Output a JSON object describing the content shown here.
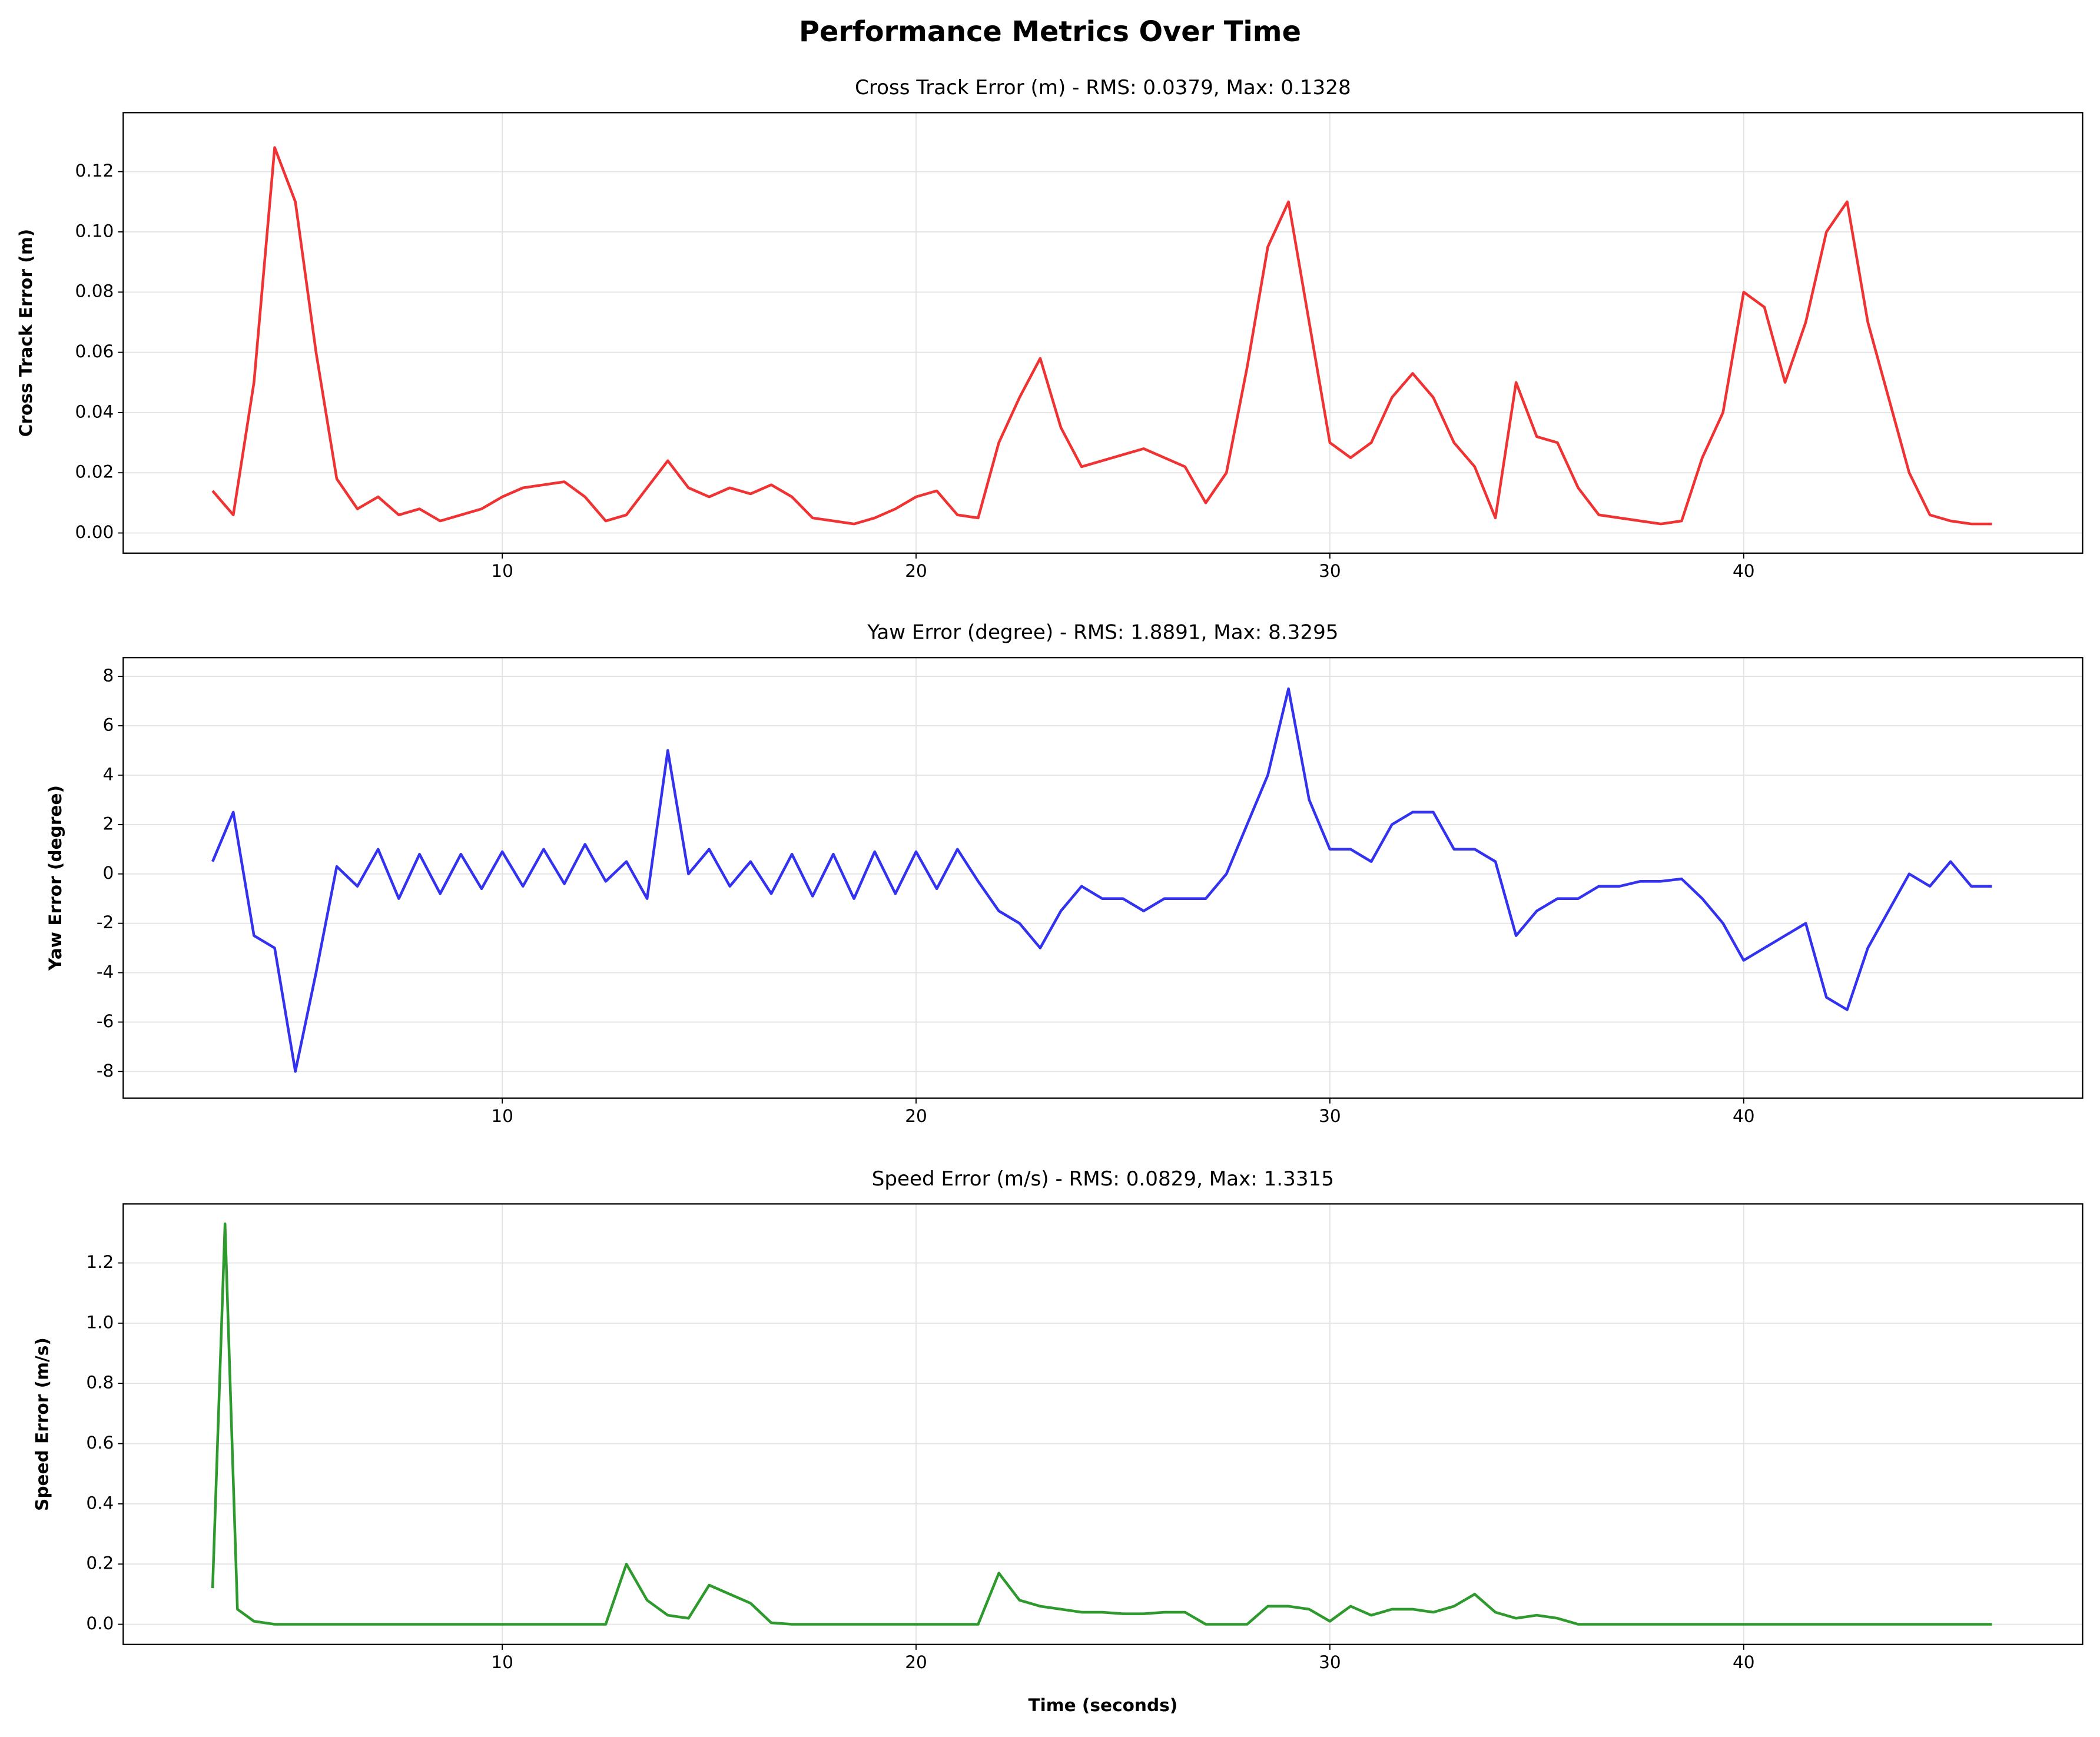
{
  "title": "Performance Metrics Over Time",
  "chart_data": [
    {
      "type": "line",
      "title": "Cross Track Error (m) - RMS: 0.0379, Max: 0.1328",
      "ylabel": "Cross Track Error (m)",
      "color": "#f03232",
      "grid": true,
      "x": [
        3,
        3.5,
        4,
        4.5,
        5,
        5.5,
        6,
        6.5,
        7,
        7.5,
        8,
        8.5,
        9,
        9.5,
        10,
        10.5,
        11,
        11.5,
        12,
        12.5,
        13,
        13.5,
        14,
        14.5,
        15,
        15.5,
        16,
        16.5,
        17,
        17.5,
        18,
        18.5,
        19,
        19.5,
        20,
        20.5,
        21,
        21.5,
        22,
        22.5,
        23,
        23.5,
        24,
        24.5,
        25,
        25.5,
        26,
        26.5,
        27,
        27.5,
        28,
        28.5,
        29,
        29.5,
        30,
        30.5,
        31,
        31.5,
        32,
        32.5,
        33,
        33.5,
        34,
        34.5,
        35,
        35.5,
        36,
        36.5,
        37,
        37.5,
        38,
        38.5,
        39,
        39.5,
        40,
        40.5,
        41,
        41.5,
        42,
        42.5,
        43,
        43.5,
        44,
        44.5,
        45,
        45.5,
        46
      ],
      "values": [
        0.014,
        0.006,
        0.05,
        0.128,
        0.11,
        0.06,
        0.018,
        0.008,
        0.012,
        0.006,
        0.008,
        0.004,
        0.006,
        0.008,
        0.012,
        0.015,
        0.016,
        0.017,
        0.012,
        0.004,
        0.006,
        0.015,
        0.024,
        0.015,
        0.012,
        0.015,
        0.013,
        0.016,
        0.012,
        0.005,
        0.004,
        0.003,
        0.005,
        0.008,
        0.012,
        0.014,
        0.006,
        0.005,
        0.03,
        0.045,
        0.058,
        0.035,
        0.022,
        0.024,
        0.026,
        0.028,
        0.025,
        0.022,
        0.01,
        0.02,
        0.055,
        0.095,
        0.11,
        0.07,
        0.03,
        0.025,
        0.03,
        0.045,
        0.053,
        0.045,
        0.03,
        0.022,
        0.005,
        0.05,
        0.032,
        0.03,
        0.015,
        0.006,
        0.005,
        0.004,
        0.003,
        0.004,
        0.025,
        0.04,
        0.08,
        0.075,
        0.05,
        0.07,
        0.1,
        0.11,
        0.07,
        0.045,
        0.02,
        0.006,
        0.004,
        0.003,
        0.003
      ],
      "xlim": [
        0.84,
        48.19
      ],
      "xticks": [
        10,
        20,
        30,
        40
      ],
      "ylim": [
        -0.0067,
        0.1396
      ],
      "yticks": [
        {
          "value": 0,
          "label": "0.00"
        },
        {
          "value": 0.02,
          "label": "0.02"
        },
        {
          "value": 0.04,
          "label": "0.04"
        },
        {
          "value": 0.06,
          "label": "0.06"
        },
        {
          "value": 0.08,
          "label": "0.08"
        },
        {
          "value": 0.1,
          "label": "0.10"
        },
        {
          "value": 0.12,
          "label": "0.12"
        }
      ]
    },
    {
      "type": "line",
      "title": "Yaw Error (degree) - RMS: 1.8891, Max: 8.3295",
      "ylabel": "Yaw Error (degree)",
      "color": "#3232f0",
      "grid": true,
      "x": [
        3,
        3.5,
        4,
        4.5,
        5,
        5.5,
        6,
        6.5,
        7,
        7.5,
        8,
        8.5,
        9,
        9.5,
        10,
        10.5,
        11,
        11.5,
        12,
        12.5,
        13,
        13.5,
        14,
        14.5,
        15,
        15.5,
        16,
        16.5,
        17,
        17.5,
        18,
        18.5,
        19,
        19.5,
        20,
        20.5,
        21,
        21.5,
        22,
        22.5,
        23,
        23.5,
        24,
        24.5,
        25,
        25.5,
        26,
        26.5,
        27,
        27.5,
        28,
        28.5,
        29,
        29.5,
        30,
        30.5,
        31,
        31.5,
        32,
        32.5,
        33,
        33.5,
        34,
        34.5,
        35,
        35.5,
        36,
        36.5,
        37,
        37.5,
        38,
        38.5,
        39,
        39.5,
        40,
        40.5,
        41,
        41.5,
        42,
        42.5,
        43,
        43.5,
        44,
        44.5,
        45,
        45.5,
        46
      ],
      "values": [
        0.5,
        2.5,
        -2.5,
        -3,
        -8,
        -4,
        0.3,
        -0.5,
        1,
        -1,
        0.8,
        -0.8,
        0.8,
        -0.6,
        0.9,
        -0.5,
        1,
        -0.4,
        1.2,
        -0.3,
        0.5,
        -1,
        5,
        0,
        1,
        -0.5,
        0.5,
        -0.8,
        0.8,
        -0.9,
        0.8,
        -1,
        0.9,
        -0.8,
        0.9,
        -0.6,
        1,
        -0.3,
        -1.5,
        -2,
        -3,
        -1.5,
        -0.5,
        -1,
        -1,
        -1.5,
        -1,
        -1,
        -1,
        0,
        2,
        4,
        7.5,
        3,
        1,
        1,
        0.5,
        2,
        2.5,
        2.5,
        1,
        1,
        0.5,
        -2.5,
        -1.5,
        -1,
        -1,
        -0.5,
        -0.5,
        -0.3,
        -0.3,
        -0.2,
        -1,
        -2,
        -3.5,
        -3,
        -2.5,
        -2,
        -5,
        -5.5,
        -3,
        -1.5,
        0,
        -0.5,
        0.5,
        -0.5,
        -0.5
      ],
      "xlim": [
        0.84,
        48.19
      ],
      "xticks": [
        10,
        20,
        30,
        40
      ],
      "ylim": [
        -9.08,
        8.76
      ],
      "yticks": [
        -8,
        -6,
        -4,
        -2,
        0,
        2,
        4,
        6,
        8
      ]
    },
    {
      "type": "line",
      "title": "Speed Error (m/s) - RMS: 0.0829, Max: 1.3315",
      "ylabel": "Speed Error (m/s)",
      "xlabel": "Time (seconds)",
      "color": "#2e9a2e",
      "grid": true,
      "x": [
        3,
        3.3,
        3.6,
        4,
        4.5,
        5,
        5.5,
        6,
        6.5,
        7,
        7.5,
        8,
        8.5,
        9,
        9.5,
        10,
        10.5,
        11,
        11.5,
        12,
        12.5,
        13,
        13.5,
        14,
        14.5,
        15,
        15.5,
        16,
        16.5,
        17,
        17.5,
        18,
        18.5,
        19,
        19.5,
        20,
        20.5,
        21,
        21.5,
        22,
        22.5,
        23,
        23.5,
        24,
        24.5,
        25,
        25.5,
        26,
        26.5,
        27,
        27.5,
        28,
        28.5,
        29,
        29.5,
        30,
        30.5,
        31,
        31.5,
        32,
        32.5,
        33,
        33.5,
        34,
        34.5,
        35,
        35.5,
        36,
        36.5,
        37,
        37.5,
        38,
        38.5,
        39,
        39.5,
        40,
        40.5,
        41,
        41.5,
        42,
        42.5,
        43,
        43.5,
        44,
        44.5,
        45,
        45.5,
        46
      ],
      "values": [
        0.12,
        1.33,
        0.05,
        0.01,
        0,
        0,
        0,
        0,
        0,
        0,
        0,
        0,
        0,
        0,
        0,
        0,
        0,
        0,
        0,
        0,
        0,
        0.2,
        0.08,
        0.03,
        0.02,
        0.13,
        0.1,
        0.07,
        0.005,
        0,
        0,
        0,
        0,
        0,
        0,
        0,
        0,
        0,
        0,
        0.17,
        0.08,
        0.06,
        0.05,
        0.04,
        0.04,
        0.035,
        0.035,
        0.04,
        0.04,
        0,
        0,
        0,
        0.06,
        0.06,
        0.05,
        0.01,
        0.06,
        0.03,
        0.05,
        0.05,
        0.04,
        0.06,
        0.1,
        0.04,
        0.02,
        0.03,
        0.02,
        0,
        0,
        0,
        0,
        0,
        0,
        0,
        0,
        0,
        0,
        0,
        0,
        0,
        0,
        0,
        0,
        0,
        0,
        0,
        0,
        0
      ],
      "xlim": [
        0.84,
        48.19
      ],
      "xticks": [
        10,
        20,
        30,
        40
      ],
      "ylim": [
        -0.067,
        1.396
      ],
      "yticks": [
        {
          "value": 0,
          "label": "0.0"
        },
        {
          "value": 0.2,
          "label": "0.2"
        },
        {
          "value": 0.4,
          "label": "0.4"
        },
        {
          "value": 0.6,
          "label": "0.6"
        },
        {
          "value": 0.8,
          "label": "0.8"
        },
        {
          "value": 1,
          "label": "1.0"
        },
        {
          "value": 1.2,
          "label": "1.2"
        }
      ]
    }
  ]
}
